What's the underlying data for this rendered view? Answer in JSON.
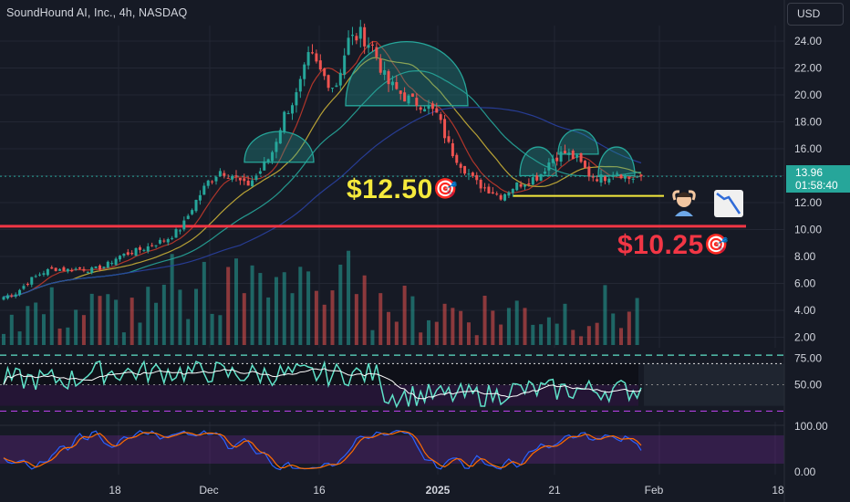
{
  "header": {
    "title": "SoundHound AI, Inc., 4h, NASDAQ",
    "currency": "USD"
  },
  "current_price": {
    "value": "13.96",
    "countdown": "01:58:40"
  },
  "annotations": {
    "target_1": "$12.50",
    "target_2": "$10.25",
    "target_icon": "bullseye-icon",
    "person_icon": "person-gesturing-ok-icon",
    "chart_down_icon": "chart-decreasing-icon"
  },
  "colors": {
    "background": "#161a25",
    "up": "#26a69a",
    "down": "#ef5350",
    "target_yellow": "#f5ea3c",
    "target_red": "#f23645",
    "rsi": "#5fe1c8",
    "stoch_k": "#2962ff",
    "stoch_d": "#ff6d00"
  },
  "chart_data": [
    {
      "type": "candlestick",
      "title": "SoundHound AI, Inc., 4h, NASDAQ",
      "price_axis": [
        "24.00",
        "22.00",
        "20.00",
        "18.00",
        "16.00",
        "14.00",
        "12.00",
        "10.00",
        "8.00",
        "6.00",
        "4.00",
        "2.00"
      ],
      "time_axis": [
        "18",
        "Dec",
        "16",
        "2025",
        "21",
        "Feb",
        "18"
      ],
      "ylim": [
        1.5,
        25.5
      ],
      "close_path": [
        5.0,
        5.3,
        6.2,
        6.8,
        7.1,
        7.0,
        7.1,
        7.0,
        7.3,
        8.0,
        8.3,
        8.6,
        9.0,
        9.4,
        10.2,
        12.0,
        13.5,
        14.4,
        14.0,
        13.2,
        14.2,
        15.6,
        18.5,
        20.0,
        23.0,
        21.5,
        20.5,
        24.0,
        24.5,
        23.5,
        21.0,
        20.2,
        19.5,
        19.3,
        18.5,
        16.0,
        14.7,
        13.5,
        13.0,
        12.5,
        13.2,
        13.6,
        14.0,
        15.3,
        15.7,
        15.2,
        14.0,
        13.8,
        14.4,
        13.8,
        13.96
      ],
      "current_price": 13.96,
      "target_lines": [
        {
          "label": "$12.50",
          "value": 12.5
        },
        {
          "label": "$10.25",
          "value": 10.25
        }
      ],
      "moving_averages": [
        "red",
        "yellow",
        "teal",
        "blue"
      ],
      "pattern": "rounded tops"
    },
    {
      "type": "bar",
      "title": "Volume",
      "note": "volume histogram overlaid in lower part of price pane"
    },
    {
      "type": "line",
      "title": "RSI",
      "y_axis": [
        "75.00",
        "50.00"
      ],
      "ylim": [
        15,
        85
      ],
      "bands": [
        70,
        50,
        30
      ]
    },
    {
      "type": "line",
      "title": "Stochastic RSI",
      "y_axis": [
        "100.00",
        "0.00"
      ],
      "ylim": [
        0,
        100
      ]
    }
  ]
}
